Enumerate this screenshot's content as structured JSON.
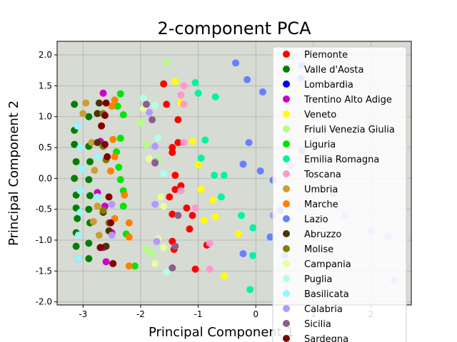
{
  "chart_data": {
    "type": "scatter",
    "title": "2-component PCA",
    "xlabel": "Principal Component 1",
    "ylabel": "Principal Component 2",
    "xlim": [
      -3.45,
      2.7
    ],
    "ylim": [
      -2.05,
      2.22
    ],
    "xticks": [
      -3,
      -2,
      -1,
      0,
      1,
      2
    ],
    "yticks": [
      -2.0,
      -1.5,
      -1.0,
      -0.5,
      0.0,
      0.5,
      1.0,
      1.5,
      2.0
    ],
    "grid": true,
    "legend_position": "right",
    "background": "#d6dbd3",
    "series": [
      {
        "name": "Piemonte",
        "color": "#ff0000",
        "points": [
          [
            -1.6,
            1.53
          ],
          [
            -1.55,
            1.2
          ],
          [
            -1.45,
            0.5
          ],
          [
            -1.45,
            0.42
          ],
          [
            -1.35,
            0.95
          ],
          [
            -1.35,
            0.58
          ],
          [
            -1.4,
            0.05
          ],
          [
            -1.4,
            -0.18
          ],
          [
            -1.5,
            -0.3
          ],
          [
            -1.3,
            -0.12
          ],
          [
            -1.45,
            -0.58
          ],
          [
            -1.2,
            -0.48
          ],
          [
            -1.1,
            -0.6
          ],
          [
            -1.15,
            -0.82
          ],
          [
            -1.45,
            -1.02
          ],
          [
            -1.42,
            -1.15
          ],
          [
            -1.05,
            -1.47
          ],
          [
            -0.85,
            -1.08
          ]
        ]
      },
      {
        "name": "Valle d'Aosta",
        "color": "#008000",
        "points": [
          [
            -3.15,
            1.2
          ],
          [
            -3.15,
            0.78
          ],
          [
            -3.15,
            0.55
          ],
          [
            -3.12,
            0.27
          ],
          [
            -3.15,
            0.0
          ],
          [
            -3.12,
            -0.27
          ],
          [
            -3.12,
            -0.48
          ],
          [
            -3.1,
            -0.65
          ],
          [
            -3.12,
            -0.88
          ],
          [
            -3.12,
            -1.1
          ],
          [
            -3.08,
            -1.3
          ],
          [
            -2.9,
            1.0
          ],
          [
            -2.9,
            0.52
          ],
          [
            -2.88,
            0.27
          ],
          [
            -2.9,
            -0.02
          ],
          [
            -2.88,
            -0.28
          ],
          [
            -2.9,
            -0.5
          ],
          [
            -2.88,
            -0.72
          ],
          [
            -2.9,
            -1.05
          ],
          [
            -2.9,
            -1.3
          ]
        ]
      },
      {
        "name": "Lombardia",
        "color": "#0000ff",
        "points": []
      },
      {
        "name": "Trentino Alto Adige",
        "color": "#cc00cc",
        "points": [
          [
            -2.65,
            1.38
          ],
          [
            -2.7,
            0.6
          ],
          [
            -2.75,
            -0.23
          ],
          [
            -2.62,
            -0.45
          ],
          [
            -2.5,
            -0.88
          ],
          [
            -2.65,
            -1.12
          ],
          [
            -2.6,
            -1.35
          ]
        ]
      },
      {
        "name": "Veneto",
        "color": "#ffff00",
        "points": [
          [
            -1.4,
            1.57
          ],
          [
            -1.3,
            1.22
          ],
          [
            -1.1,
            0.6
          ],
          [
            -1.0,
            0.22
          ],
          [
            -0.95,
            -0.18
          ],
          [
            -0.75,
            -0.35
          ],
          [
            -0.9,
            -0.68
          ],
          [
            -0.7,
            -0.62
          ],
          [
            -0.3,
            -0.9
          ],
          [
            -0.55,
            -1.58
          ]
        ]
      },
      {
        "name": "Friuli Venezia Giulia",
        "color": "#b3ff80",
        "points": [
          [
            -1.55,
            1.88
          ],
          [
            -2.0,
            0.9
          ],
          [
            -1.9,
            0.55
          ],
          [
            -1.7,
            0.3
          ],
          [
            -1.9,
            -1.15
          ],
          [
            -1.8,
            -1.22
          ]
        ]
      },
      {
        "name": "Liguria",
        "color": "#00e600",
        "points": [
          [
            -2.35,
            1.37
          ],
          [
            -2.4,
            1.17
          ],
          [
            -2.3,
            1.03
          ],
          [
            -2.35,
            0.65
          ],
          [
            -2.42,
            0.43
          ],
          [
            -2.38,
            0.18
          ],
          [
            -2.35,
            -0.02
          ],
          [
            -2.3,
            -0.2
          ],
          [
            -2.3,
            -0.45
          ],
          [
            -2.25,
            -0.9
          ],
          [
            -2.1,
            -1.42
          ]
        ]
      },
      {
        "name": "Emilia Romagna",
        "color": "#00f5a0",
        "points": [
          [
            -1.05,
            1.55
          ],
          [
            -1.0,
            1.38
          ],
          [
            -0.7,
            1.32
          ],
          [
            -0.88,
            0.62
          ],
          [
            -0.95,
            0.33
          ],
          [
            -0.72,
            0.05
          ],
          [
            -0.55,
            0.05
          ],
          [
            -0.6,
            -0.3
          ],
          [
            -0.25,
            -0.6
          ],
          [
            -0.05,
            -0.8
          ],
          [
            -0.05,
            -1.25
          ],
          [
            -0.1,
            -1.8
          ]
        ]
      },
      {
        "name": "Toscana",
        "color": "#ff99cc",
        "points": [
          [
            -1.25,
            1.5
          ],
          [
            -1.3,
            1.35
          ],
          [
            -1.25,
            1.2
          ],
          [
            -1.25,
            0.58
          ],
          [
            -1.3,
            -0.2
          ],
          [
            -1.05,
            -0.48
          ],
          [
            -0.8,
            -1.05
          ],
          [
            -0.8,
            -1.47
          ]
        ]
      },
      {
        "name": "Umbria",
        "color": "#cc9e33",
        "points": [
          [
            -2.95,
            1.22
          ],
          [
            -3.0,
            1.05
          ],
          [
            -2.85,
            0.58
          ],
          [
            -2.8,
            0.13
          ],
          [
            -2.75,
            -0.45
          ],
          [
            -2.82,
            -0.7
          ],
          [
            -2.72,
            -0.92
          ]
        ]
      },
      {
        "name": "Marche",
        "color": "#ff8000",
        "points": [
          [
            -2.45,
            1.27
          ],
          [
            -2.5,
            1.17
          ],
          [
            -2.48,
            0.63
          ],
          [
            -2.45,
            0.35
          ],
          [
            -2.52,
            0.12
          ],
          [
            -2.28,
            -0.27
          ],
          [
            -2.45,
            -0.65
          ],
          [
            -2.2,
            -0.72
          ],
          [
            -2.2,
            -0.95
          ],
          [
            -2.2,
            -1.42
          ]
        ]
      },
      {
        "name": "Lazio",
        "color": "#6680ff",
        "points": [
          [
            -0.35,
            1.87
          ],
          [
            -0.15,
            1.6
          ],
          [
            0.12,
            1.4
          ],
          [
            -0.12,
            0.58
          ],
          [
            -0.22,
            0.23
          ],
          [
            0.08,
            0.12
          ],
          [
            0.3,
            -0.03
          ],
          [
            0.42,
            -0.52
          ],
          [
            0.25,
            -0.95
          ],
          [
            0.5,
            -1.25
          ],
          [
            -0.22,
            -1.22
          ],
          [
            0.8,
            1.83
          ],
          [
            0.78,
            1.62
          ],
          [
            0.8,
            0.45
          ]
        ]
      },
      {
        "name": "Abruzzo",
        "color": "#4d3300",
        "points": [
          [
            -2.72,
            1.22
          ],
          [
            -2.75,
            1.05
          ],
          [
            -2.75,
            0.58
          ],
          [
            -2.65,
            -0.55
          ],
          [
            -2.55,
            -0.85
          ],
          [
            -2.6,
            -1.1
          ]
        ]
      },
      {
        "name": "Molise",
        "color": "#808000",
        "points": [
          [
            -2.65,
            1.05
          ],
          [
            -2.65,
            0.52
          ],
          [
            -2.6,
            0.3
          ],
          [
            -2.65,
            -0.52
          ],
          [
            -2.55,
            -0.72
          ]
        ]
      },
      {
        "name": "Campania",
        "color": "#e6ff99",
        "points": [
          [
            -1.95,
            1.13
          ],
          [
            -1.85,
            0.32
          ],
          [
            -1.65,
            -0.3
          ],
          [
            -1.6,
            -0.45
          ],
          [
            -1.7,
            -0.98
          ],
          [
            -1.6,
            -1.12
          ],
          [
            -1.75,
            -1.38
          ]
        ]
      },
      {
        "name": "Puglia",
        "color": "#b3ffe6",
        "points": [
          [
            -1.95,
            1.3
          ],
          [
            -1.75,
            1.18
          ],
          [
            -1.7,
            0.65
          ],
          [
            -1.6,
            0.08
          ],
          [
            -1.55,
            -1.52
          ]
        ]
      },
      {
        "name": "Basilicata",
        "color": "#99f5ff",
        "points": [
          [
            -3.1,
            0.85
          ],
          [
            -3.05,
            0.5
          ],
          [
            -3.02,
            0.15
          ],
          [
            -3.05,
            -0.2
          ],
          [
            -3.05,
            -0.55
          ],
          [
            -3.08,
            -0.92
          ],
          [
            -3.08,
            -1.3
          ],
          [
            -2.75,
            0.35
          ],
          [
            -2.75,
            -0.3
          ]
        ]
      },
      {
        "name": "Calabria",
        "color": "#b399ff",
        "points": [
          [
            -1.85,
            1.07
          ],
          [
            -1.75,
            0.52
          ],
          [
            -1.75,
            0.27
          ],
          [
            -1.75,
            -0.42
          ],
          [
            -1.72,
            -1.02
          ],
          [
            -2.5,
            -0.42
          ],
          [
            -2.5,
            -0.92
          ],
          [
            0.6,
            0.2
          ],
          [
            0.3,
            -0.6
          ],
          [
            1.35,
            -0.25
          ],
          [
            1.55,
            -0.6
          ],
          [
            2.0,
            -0.85
          ],
          [
            2.3,
            -0.95
          ],
          [
            2.4,
            -1.65
          ]
        ]
      },
      {
        "name": "Sicilia",
        "color": "#8c5e8c",
        "points": [
          [
            -1.9,
            1.2
          ],
          [
            -1.8,
            0.95
          ],
          [
            -1.75,
            0.25
          ],
          [
            -1.45,
            -1.45
          ],
          [
            -1.35,
            -0.6
          ],
          [
            -1.4,
            -1.1
          ]
        ]
      },
      {
        "name": "Sardegna",
        "color": "#800000",
        "points": [
          [
            -2.6,
            1.22
          ],
          [
            -2.62,
            1.02
          ],
          [
            -2.68,
            0.85
          ],
          [
            -2.62,
            0.55
          ],
          [
            -2.58,
            0.35
          ],
          [
            -2.55,
            -0.3
          ],
          [
            -2.52,
            -0.72
          ],
          [
            -2.48,
            -1.38
          ],
          [
            -2.7,
            -1.12
          ]
        ]
      }
    ]
  }
}
